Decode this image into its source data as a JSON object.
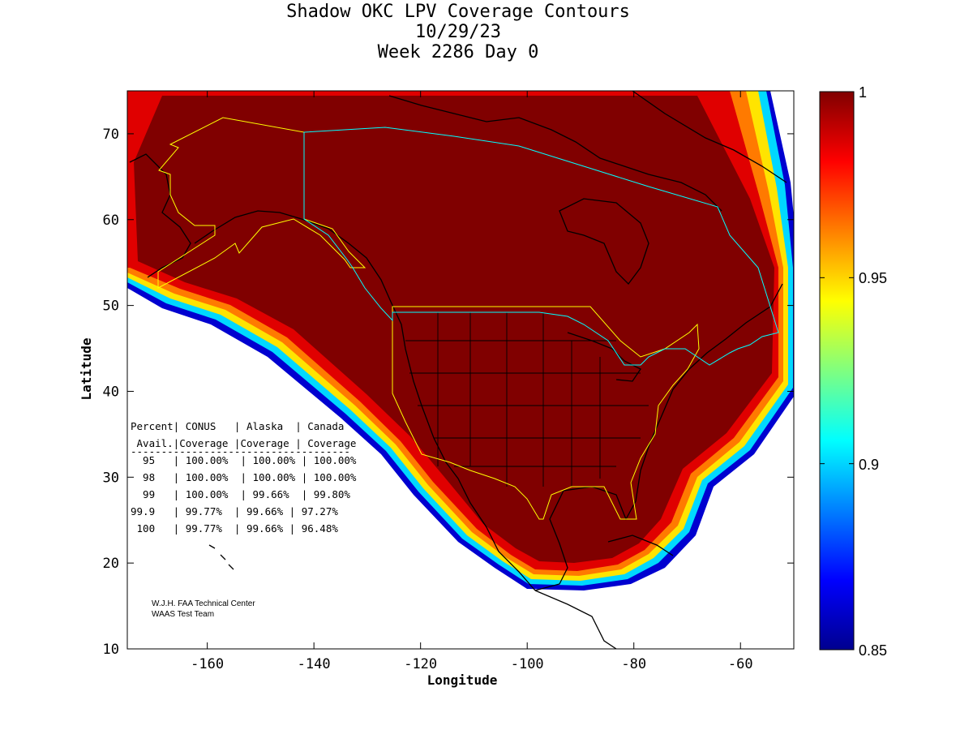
{
  "title": {
    "line1": "Shadow OKC LPV Coverage Contours",
    "line2": "10/29/23",
    "line3": "Week 2286 Day 0"
  },
  "axes": {
    "xlabel": "Longitude",
    "ylabel": "Latitude",
    "x_ticks": [
      "-160",
      "-140",
      "-120",
      "-100",
      "-80",
      "-60"
    ],
    "y_ticks": [
      "10",
      "20",
      "30",
      "40",
      "50",
      "60",
      "70"
    ],
    "x_range": [
      -175,
      -50
    ],
    "y_range": [
      10,
      75
    ]
  },
  "colorbar": {
    "labels": [
      "1",
      "0.95",
      "0.9",
      "0.85"
    ],
    "range": [
      0.85,
      1.0
    ],
    "colormap": "jet"
  },
  "coverage_table": {
    "header1": "Percent| CONUS   | Alaska  | Canada",
    "header2": " Avail.|Coverage |Coverage | Coverage",
    "separator": "------------------------------------",
    "rows": [
      "  95   | 100.00%  | 100.00% | 100.00%",
      "  98   | 100.00%  | 100.00% | 100.00%",
      "  99   | 100.00%  | 99.66%  | 99.80%",
      "99.9   | 99.77%  | 99.66% | 97.27%",
      " 100   | 99.77%  | 99.66% | 96.48%"
    ]
  },
  "credit": {
    "line1": "W.J.H. FAA Technical Center",
    "line2": "WAAS Test Team"
  },
  "colors": {
    "coverage_max": "#800000",
    "boundary_us": "#ffff00",
    "boundary_canada": "#00ffff",
    "coastline": "#000000"
  }
}
